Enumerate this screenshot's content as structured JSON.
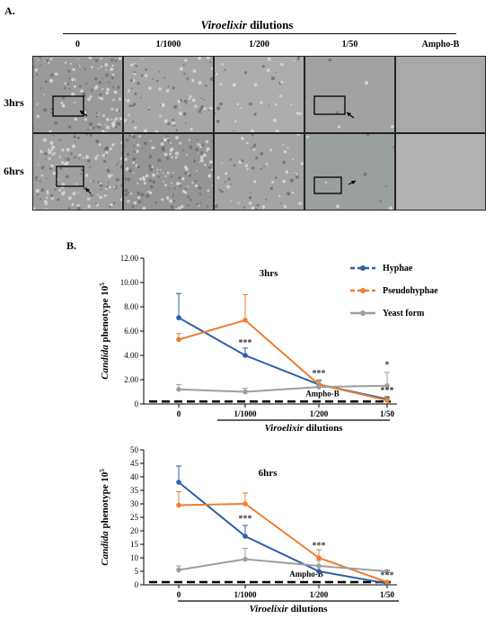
{
  "panel_a": {
    "label": "A.",
    "title_italic": "Viroelixir",
    "title_rest": " dilutions",
    "columns": [
      "0",
      "1/1000",
      "1/200",
      "1/50",
      "Ampho-B"
    ],
    "rows": [
      "3hrs",
      "6hrs"
    ]
  },
  "panel_b": {
    "label": "B."
  },
  "chart_data": [
    {
      "type": "line",
      "title": "3hrs",
      "ylabel_italic": "Candida",
      "ylabel_rest": " phenotype 10",
      "ylabel_sup": "5",
      "xlabel_italic": "Viroelixir",
      "xlabel_rest": " dilutions",
      "categories": [
        "0",
        "1/1000",
        "1/200",
        "1/50"
      ],
      "ylim": [
        0,
        12
      ],
      "yticks": [
        "0",
        "2.00",
        "4.00",
        "6.00",
        "8.00",
        "10.00",
        "12.00"
      ],
      "ytick_values": [
        0,
        2,
        4,
        6,
        8,
        10,
        12
      ],
      "legend_position": "top-right",
      "series": [
        {
          "name": "Hyphae",
          "color": "#2e5fa8",
          "values": [
            7.1,
            4.0,
            1.6,
            0.4
          ],
          "errors": [
            2.0,
            0.6,
            0.3,
            0.2
          ]
        },
        {
          "name": "Pseudohyphae",
          "color": "#ee7d31",
          "values": [
            5.3,
            6.9,
            1.6,
            0.3
          ],
          "errors": [
            0.5,
            2.1,
            0.4,
            0.2
          ]
        },
        {
          "name": "Yeast form",
          "color": "#9e9e9e",
          "values": [
            1.2,
            1.0,
            1.4,
            1.5
          ],
          "errors": [
            0.4,
            0.3,
            0.3,
            1.1
          ]
        }
      ],
      "ampho_label": "Ampho-B",
      "ampho_value": 0.2,
      "annotations": [
        {
          "text": "***",
          "x_index": 1,
          "y": 4.8
        },
        {
          "text": "***",
          "x_index": 2,
          "y": 2.3
        },
        {
          "text": "*",
          "x_index": 3,
          "y": 3.0
        },
        {
          "text": "***",
          "x_index": 3,
          "y": 0.9
        }
      ]
    },
    {
      "type": "line",
      "title": "6hrs",
      "ylabel_italic": "Candida",
      "ylabel_rest": " phenotype 10",
      "ylabel_sup": "5",
      "xlabel_italic": "Viroelixir",
      "xlabel_rest": " dilutions",
      "categories": [
        "0",
        "1/1000",
        "1/200",
        "1/50"
      ],
      "ylim": [
        0,
        50
      ],
      "yticks": [
        "0",
        "5",
        "10",
        "15",
        "20",
        "25",
        "30",
        "35",
        "40",
        "45",
        "50"
      ],
      "ytick_values": [
        0,
        5,
        10,
        15,
        20,
        25,
        30,
        35,
        40,
        45,
        50
      ],
      "series": [
        {
          "name": "Hyphae",
          "color": "#2e5fa8",
          "values": [
            38,
            18,
            5,
            0.5
          ],
          "errors": [
            6,
            4,
            2,
            0.5
          ]
        },
        {
          "name": "Pseudohyphae",
          "color": "#ee7d31",
          "values": [
            29.5,
            30,
            10,
            1
          ],
          "errors": [
            5,
            4,
            3,
            0.5
          ]
        },
        {
          "name": "Yeast form",
          "color": "#9e9e9e",
          "values": [
            5.5,
            9.5,
            7,
            5
          ],
          "errors": [
            1.5,
            4,
            2,
            0.5
          ]
        }
      ],
      "ampho_label": "Ampho-B",
      "ampho_value": 1,
      "annotations": [
        {
          "text": "***",
          "x_index": 1,
          "y": 23.5
        },
        {
          "text": "***",
          "x_index": 2,
          "y": 13.5
        },
        {
          "text": "***",
          "x_index": 3,
          "y": 2.5
        }
      ]
    }
  ]
}
